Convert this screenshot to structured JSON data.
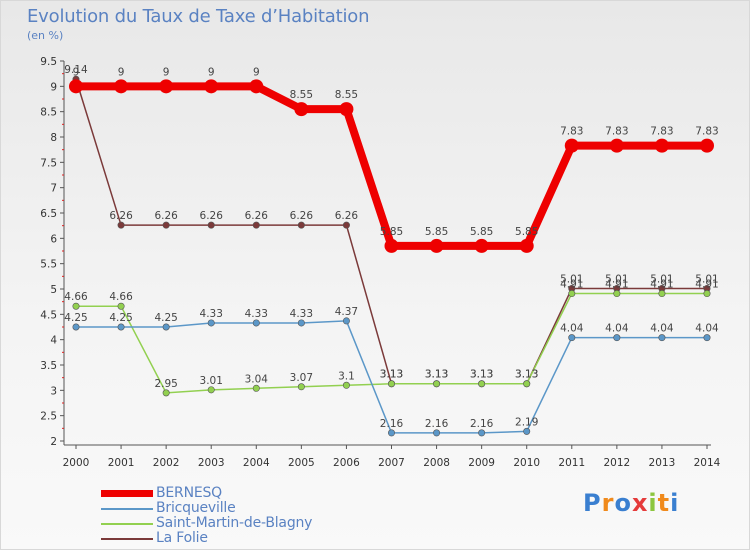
{
  "title": "Evolution du Taux de Taxe d’Habitation",
  "unit": "(en %)",
  "logo": "Proxiti",
  "chart_data": {
    "type": "line",
    "x": [
      "2000",
      "2001",
      "2002",
      "2003",
      "2004",
      "2005",
      "2006",
      "2007",
      "2008",
      "2009",
      "2010",
      "2011",
      "2012",
      "2013",
      "2014"
    ],
    "ylim": [
      2,
      9.5
    ],
    "yticks": [
      "2",
      "2.5",
      "3",
      "3.5",
      "4",
      "4.5",
      "5",
      "5.5",
      "6",
      "6.5",
      "7",
      "7.5",
      "8",
      "8.5",
      "9",
      "9.5"
    ],
    "series": [
      {
        "name": "BERNESQ",
        "color": "#ee0000",
        "width": 8,
        "marker": 7,
        "values": [
          9,
          9,
          9,
          9,
          9,
          8.55,
          8.55,
          5.85,
          5.85,
          5.85,
          5.85,
          7.83,
          7.83,
          7.83,
          7.83
        ],
        "labels": [
          "9",
          "9",
          "9",
          "9",
          "9",
          "8.55",
          "8.55",
          "5.85",
          "5.85",
          "5.85",
          "5.85",
          "7.83",
          "7.83",
          "7.83",
          "7.83"
        ]
      },
      {
        "name": "Bricqueville",
        "color": "#5b97c8",
        "width": 1.5,
        "marker": 3.2,
        "values": [
          4.25,
          4.25,
          4.25,
          4.33,
          4.33,
          4.33,
          4.37,
          2.16,
          2.16,
          2.16,
          2.19,
          4.04,
          4.04,
          4.04,
          4.04
        ],
        "labels": [
          "4.25",
          "4.25",
          "4.25",
          "4.33",
          "4.33",
          "4.33",
          "4.37",
          "2.16",
          "2.16",
          "2.16",
          "2.19",
          "4.04",
          "4.04",
          "4.04",
          "4.04"
        ]
      },
      {
        "name": "Saint-Martin-de-Blagny",
        "color": "#92d050",
        "width": 1.5,
        "marker": 3.2,
        "values": [
          4.66,
          4.66,
          2.95,
          3.01,
          3.04,
          3.07,
          3.1,
          3.13,
          3.13,
          3.13,
          3.13,
          4.91,
          4.91,
          4.91,
          4.91
        ],
        "labels": [
          "4.66",
          "4.66",
          "2.95",
          "3.01",
          "3.04",
          "3.07",
          "3.1",
          "3.13",
          "3.13",
          "3.13",
          "3.13",
          "4.91",
          "4.91",
          "4.91",
          "4.91"
        ]
      },
      {
        "name": "La Folie",
        "color": "#7b3a3a",
        "width": 1.5,
        "marker": 3.2,
        "values": [
          9.14,
          6.26,
          6.26,
          6.26,
          6.26,
          6.26,
          6.26,
          3.13,
          3.13,
          3.13,
          3.13,
          5.01,
          5.01,
          5.01,
          5.01
        ],
        "labels": [
          "9.14",
          "6.26",
          "6.26",
          "6.26",
          "6.26",
          "6.26",
          "6.26",
          "3.13",
          "3.13",
          "3.13",
          "3.13",
          "5.01",
          "5.01",
          "5.01",
          "5.01"
        ]
      }
    ]
  }
}
